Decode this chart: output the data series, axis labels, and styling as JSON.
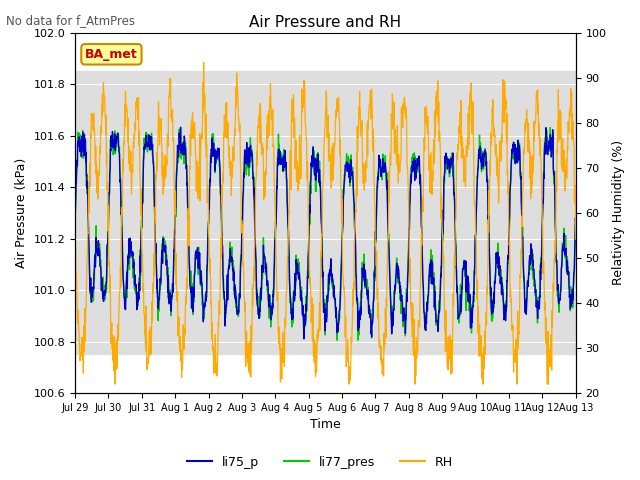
{
  "title": "Air Pressure and RH",
  "suptitle": "No data for f_AtmPres",
  "ylabel_left": "Air Pressure (kPa)",
  "ylabel_right": "Relativity Humidity (%)",
  "xlabel": "Time",
  "ylim_left": [
    100.6,
    102.0
  ],
  "ylim_right": [
    20,
    100
  ],
  "legend_labels": [
    "li75_p",
    "li77_pres",
    "RH"
  ],
  "legend_colors": [
    "#0000cc",
    "#00cc00",
    "#ffaa00"
  ],
  "box_label": "BA_met",
  "box_facecolor": "#ffff99",
  "box_edgecolor": "#cc8800",
  "box_textcolor": "#cc0000",
  "background_band": [
    100.75,
    101.85
  ],
  "band_color": "#dedede",
  "tick_labels": [
    "Jul 29",
    "Jul 30",
    "Jul 31",
    "Aug 1",
    "Aug 2",
    "Aug 3",
    "Aug 4",
    "Aug 5",
    "Aug 6",
    "Aug 7",
    "Aug 8",
    "Aug 9",
    "Aug 10",
    "Aug 11",
    "Aug 12",
    "Aug 13"
  ],
  "n_points": 1500
}
